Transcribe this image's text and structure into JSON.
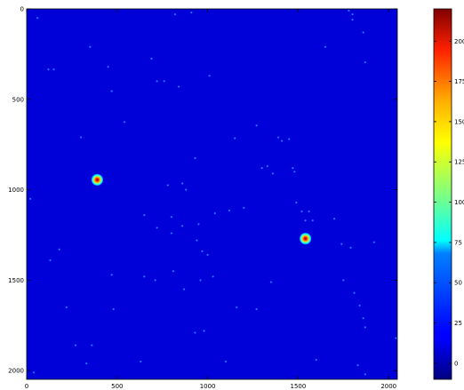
{
  "chart_data": {
    "type": "heatmap",
    "title": "",
    "xlabel": "",
    "ylabel": "",
    "xlim": [
      0,
      2048
    ],
    "ylim": [
      2048,
      0
    ],
    "x_ticks": [
      {
        "value": 0,
        "label": "0"
      },
      {
        "value": 500,
        "label": "500"
      },
      {
        "value": 1000,
        "label": "1000"
      },
      {
        "value": 1500,
        "label": "1500"
      },
      {
        "value": 2000,
        "label": "2000"
      }
    ],
    "y_ticks": [
      {
        "value": 0,
        "label": "0"
      },
      {
        "value": 500,
        "label": "500"
      },
      {
        "value": 1000,
        "label": "1000"
      },
      {
        "value": 1500,
        "label": "1500"
      },
      {
        "value": 2000,
        "label": "2000"
      }
    ],
    "colormap": "jet",
    "background_value": 10,
    "colorbar": {
      "range": [
        -10,
        220
      ],
      "ticks": [
        {
          "value": 0,
          "label": "0"
        },
        {
          "value": 25,
          "label": "25"
        },
        {
          "value": 50,
          "label": "50"
        },
        {
          "value": 75,
          "label": "75"
        },
        {
          "value": 100,
          "label": "100"
        },
        {
          "value": 125,
          "label": "125"
        },
        {
          "value": 150,
          "label": "150"
        },
        {
          "value": 175,
          "label": "175"
        },
        {
          "value": 200,
          "label": "200"
        }
      ]
    },
    "bright_sources": [
      {
        "x": 390,
        "y": 945,
        "peak": 215
      },
      {
        "x": 1540,
        "y": 1270,
        "peak": 215
      }
    ],
    "faint_sources": [
      [
        60,
        50
      ],
      [
        350,
        210
      ],
      [
        450,
        320
      ],
      [
        120,
        335
      ],
      [
        150,
        335
      ],
      [
        690,
        275
      ],
      [
        720,
        400
      ],
      [
        760,
        400
      ],
      [
        840,
        430
      ],
      [
        1010,
        370
      ],
      [
        470,
        455
      ],
      [
        820,
        30
      ],
      [
        910,
        20
      ],
      [
        1650,
        210
      ],
      [
        1860,
        130
      ],
      [
        1870,
        295
      ],
      [
        1780,
        10
      ],
      [
        1800,
        30
      ],
      [
        1800,
        60
      ],
      [
        540,
        625
      ],
      [
        300,
        710
      ],
      [
        1150,
        715
      ],
      [
        1270,
        645
      ],
      [
        1390,
        710
      ],
      [
        1410,
        730
      ],
      [
        1450,
        720
      ],
      [
        930,
        825
      ],
      [
        1300,
        880
      ],
      [
        1330,
        870
      ],
      [
        1360,
        910
      ],
      [
        1470,
        880
      ],
      [
        1480,
        900
      ],
      [
        1040,
        1130
      ],
      [
        1120,
        1115
      ],
      [
        1200,
        1100
      ],
      [
        780,
        975
      ],
      [
        860,
        965
      ],
      [
        880,
        1000
      ],
      [
        1490,
        1070
      ],
      [
        1560,
        1120
      ],
      [
        1580,
        1170
      ],
      [
        1700,
        1160
      ],
      [
        650,
        1140
      ],
      [
        800,
        1150
      ],
      [
        860,
        1200
      ],
      [
        950,
        1190
      ],
      [
        720,
        1210
      ],
      [
        800,
        1240
      ],
      [
        940,
        1280
      ],
      [
        970,
        1340
      ],
      [
        1000,
        1360
      ],
      [
        1740,
        1300
      ],
      [
        1920,
        1290
      ],
      [
        1790,
        1320
      ],
      [
        1750,
        1500
      ],
      [
        1810,
        1570
      ],
      [
        1840,
        1640
      ],
      [
        1860,
        1710
      ],
      [
        1870,
        1760
      ],
      [
        130,
        1390
      ],
      [
        180,
        1330
      ],
      [
        470,
        1470
      ],
      [
        650,
        1480
      ],
      [
        710,
        1500
      ],
      [
        810,
        1450
      ],
      [
        870,
        1550
      ],
      [
        960,
        1500
      ],
      [
        1030,
        1480
      ],
      [
        1160,
        1650
      ],
      [
        1270,
        1660
      ],
      [
        1350,
        1510
      ],
      [
        220,
        1650
      ],
      [
        480,
        1660
      ],
      [
        630,
        1950
      ],
      [
        1600,
        1940
      ],
      [
        1830,
        1970
      ],
      [
        1870,
        2020
      ],
      [
        980,
        1780
      ],
      [
        930,
        1790
      ],
      [
        270,
        1860
      ],
      [
        360,
        1860
      ],
      [
        330,
        1960
      ],
      [
        1100,
        1950
      ],
      [
        2040,
        1820
      ],
      [
        40,
        2010
      ],
      [
        20,
        1050
      ],
      [
        1540,
        1170
      ],
      [
        1520,
        1120
      ]
    ]
  }
}
